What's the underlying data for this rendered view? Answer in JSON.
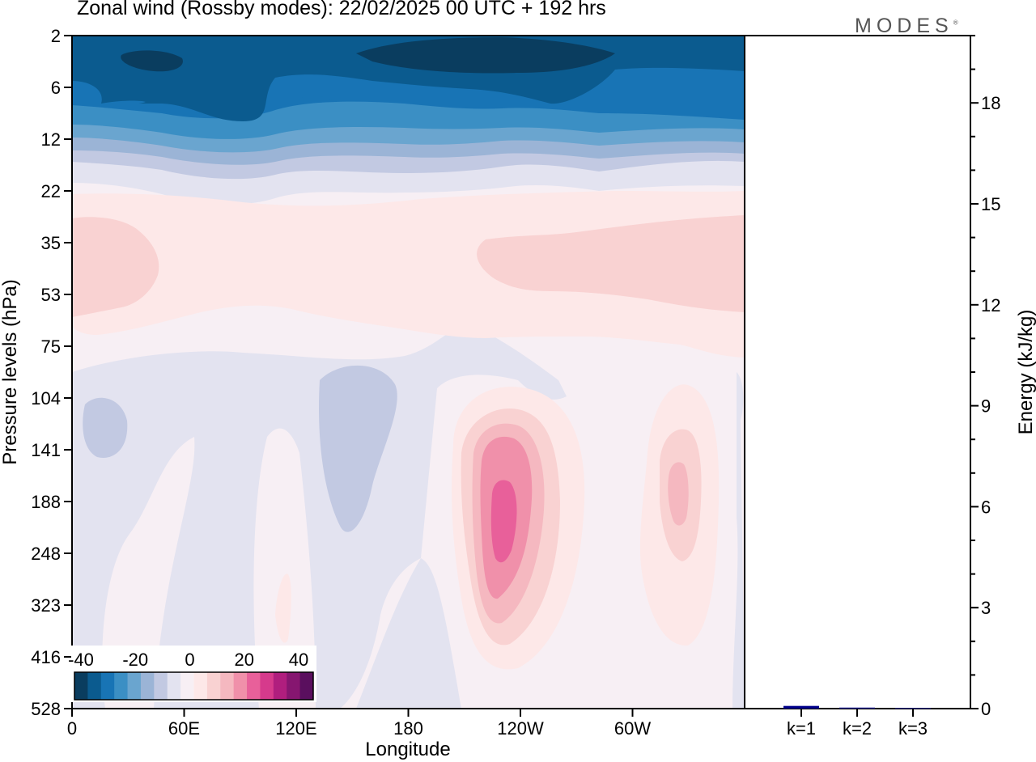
{
  "title": "Zonal wind (Rossby modes):  22/02/2025  00 UTC  + 192 hrs",
  "brand": "MODES",
  "brand_mark": "®",
  "chart_data": [
    {
      "type": "heatmap",
      "xlabel": "Longitude",
      "ylabel": "Pressure levels (hPa)",
      "x_ticks": [
        "0",
        "60E",
        "120E",
        "180",
        "120W",
        "60W"
      ],
      "y_ticks": [
        "2",
        "6",
        "12",
        "22",
        "35",
        "53",
        "75",
        "104",
        "141",
        "188",
        "248",
        "323",
        "416",
        "528"
      ],
      "colorbar": {
        "tick_labels": [
          "-40",
          "-20",
          "0",
          "20",
          "40"
        ],
        "range": [
          -40,
          40
        ],
        "colors": [
          "#0a3d5f",
          "#0b5b8f",
          "#1874b5",
          "#3b8fc4",
          "#6aa5cf",
          "#9bb4d6",
          "#c2c9e2",
          "#e3e3f0",
          "#f7eff4",
          "#fde8e8",
          "#f9d2d2",
          "#f5b8c0",
          "#f090aa",
          "#e8609a",
          "#d63a8c",
          "#b01e7e",
          "#861670",
          "#5a0f5e"
        ]
      },
      "features": [
        {
          "name": "easterly upper jet core",
          "longitude_range": [
            10,
            340
          ],
          "pressure_hPa": [
            2,
            9
          ],
          "value": -40
        },
        {
          "name": "easterly band",
          "longitude_range": [
            0,
            360
          ],
          "pressure_hPa": [
            2,
            14
          ],
          "value": -30
        },
        {
          "name": "westerly maximum",
          "longitude": 230,
          "pressure_hPa": [
            120,
            330
          ],
          "value": 25
        },
        {
          "name": "westerly secondary",
          "longitude": 323,
          "pressure_hPa": [
            140,
            260
          ],
          "value": 7
        },
        {
          "name": "weak easterly cell",
          "longitude": 148,
          "pressure_hPa": [
            100,
            250
          ],
          "value": -5
        },
        {
          "name": "weak easterly cell",
          "longitude": 13,
          "pressure_hPa": [
            100,
            160
          ],
          "value": -5
        }
      ]
    },
    {
      "type": "bar",
      "ylabel": "Energy (kJ/kg)",
      "categories": [
        "k=1",
        "k=2",
        "k=3"
      ],
      "values": [
        0.08,
        0.03,
        0.02
      ],
      "ylim": [
        0,
        20
      ],
      "y_ticks": [
        "0",
        "3",
        "6",
        "9",
        "12",
        "15",
        "18"
      ],
      "bar_color": "#00008b"
    }
  ]
}
